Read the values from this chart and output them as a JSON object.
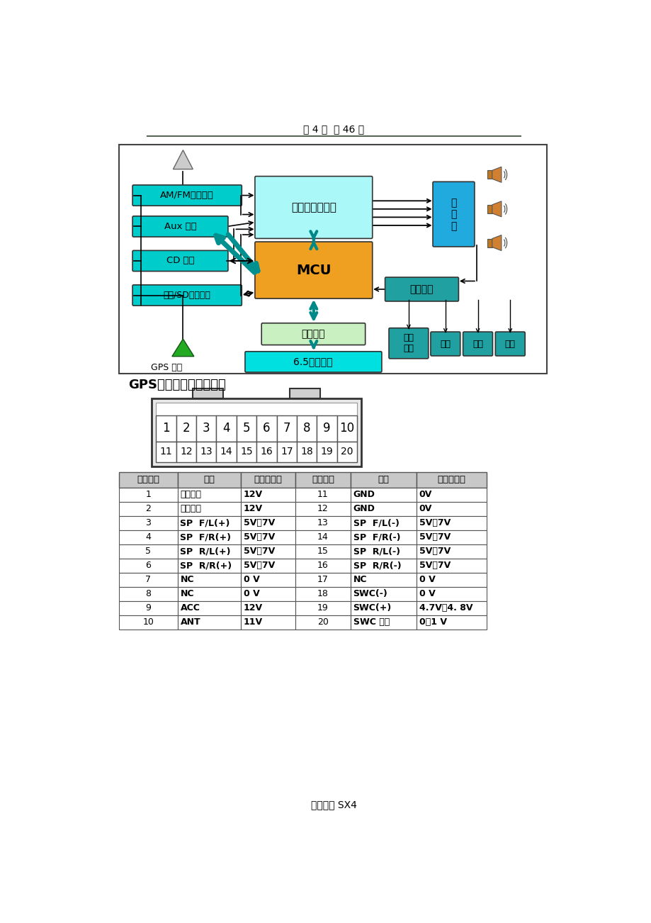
{
  "page_header": "第 4 页  共 46 页",
  "footer_text": "全新天语 SX4",
  "section_title": "GPS线束插头端子布置图",
  "bg_color": "#ffffff",
  "table_headers": [
    "端子号码",
    "线路",
    "参考电压值",
    "端子号码",
    "线路",
    "参考电压值"
  ],
  "table_rows": [
    [
      "1",
      "顶灯电源",
      "12V",
      "11",
      "GND",
      "0V"
    ],
    [
      "2",
      "照明电源",
      "12V",
      "12",
      "GND",
      "0V"
    ],
    [
      "3",
      "SP  F/L(+)",
      "5V～7V",
      "13",
      "SP  F/L(-)",
      "5V～7V"
    ],
    [
      "4",
      "SP  F/R(+)",
      "5V～7V",
      "14",
      "SP  F/R(-)",
      "5V～7V"
    ],
    [
      "5",
      "SP  R/L(+)",
      "5V～7V",
      "15",
      "SP  R/L(-)",
      "5V～7V"
    ],
    [
      "6",
      "SP  R/R(+)",
      "5V～7V",
      "16",
      "SP  R/R(-)",
      "5V～7V"
    ],
    [
      "7",
      "NC",
      "0 V",
      "17",
      "NC",
      "0 V"
    ],
    [
      "8",
      "NC",
      "0 V",
      "18",
      "SWC(-)",
      "0 V"
    ],
    [
      "9",
      "ACC",
      "12V",
      "19",
      "SWC(+)",
      "4.7V～4. 8V"
    ],
    [
      "10",
      "ANT",
      "11V",
      "20",
      "SWC 输出",
      "0～1 V"
    ]
  ],
  "connector_numbers_row1": [
    "1",
    "2",
    "3",
    "4",
    "5",
    "6",
    "7",
    "8",
    "9",
    "10"
  ],
  "connector_numbers_row2": [
    "11",
    "12",
    "13",
    "14",
    "15",
    "16",
    "17",
    "18",
    "19",
    "20"
  ]
}
